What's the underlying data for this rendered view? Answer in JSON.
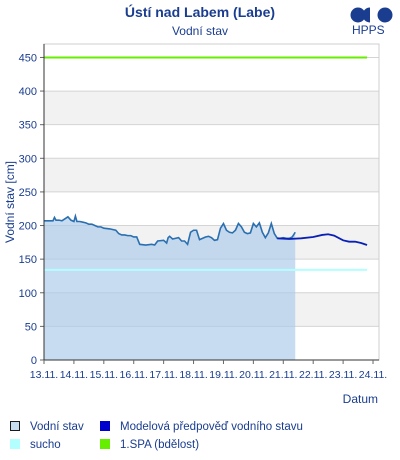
{
  "header": {
    "title": "Ústí nad Labem (Labe)",
    "subtitle": "Vodní stav",
    "logo_text": "HPPS"
  },
  "colors": {
    "observed_line": "#2a6fb0",
    "observed_fill": "#a9c9ea",
    "forecast": "#0a1fb5",
    "drought": "#b3ffff",
    "spa1": "#66ee00",
    "axis_text": "#1a3d8f",
    "band": "#f2f2f2"
  },
  "legend": [
    {
      "label": "Vodní stav",
      "color": "#c6dcf0",
      "border": "#1a1a1a"
    },
    {
      "label": "Modelová předpověď vodního stavu",
      "color": "#0000cc",
      "border": "#0000cc"
    },
    {
      "label": "sucho",
      "color": "#b3ffff",
      "border": "#b3ffff"
    },
    {
      "label": "1.SPA (bdělost)",
      "color": "#66ee00",
      "border": "#66ee00"
    }
  ],
  "chart_data": {
    "type": "line",
    "title": "Ústí nad Labem (Labe)",
    "subtitle": "Vodní stav",
    "xlabel": "Datum",
    "ylabel": "Vodní stav [cm]",
    "ylim": [
      0,
      470
    ],
    "yticks": [
      0,
      50,
      100,
      150,
      200,
      250,
      300,
      350,
      400,
      450
    ],
    "xlim": [
      0,
      11.2
    ],
    "xticks": [
      {
        "x": 0,
        "label": "13.11."
      },
      {
        "x": 1,
        "label": "14.11."
      },
      {
        "x": 2,
        "label": "15.11."
      },
      {
        "x": 3,
        "label": "16.11."
      },
      {
        "x": 4,
        "label": "17.11."
      },
      {
        "x": 5,
        "label": "18.11."
      },
      {
        "x": 6,
        "label": "19.11."
      },
      {
        "x": 7,
        "label": "20.11."
      },
      {
        "x": 8,
        "label": "21.11."
      },
      {
        "x": 9,
        "label": "22.11."
      },
      {
        "x": 10,
        "label": "23.11."
      },
      {
        "x": 11,
        "label": "24.11."
      }
    ],
    "series": [
      {
        "name": "Vodní stav",
        "x": [
          0,
          0.3,
          0.35,
          0.4,
          0.5,
          0.6,
          0.7,
          0.8,
          0.9,
          1.0,
          1.05,
          1.1,
          1.2,
          1.3,
          1.4,
          1.5,
          1.6,
          1.7,
          1.8,
          1.9,
          2.0,
          2.2,
          2.4,
          2.5,
          2.6,
          2.7,
          2.8,
          2.9,
          3.0,
          3.1,
          3.2,
          3.4,
          3.6,
          3.7,
          3.8,
          4.0,
          4.1,
          4.15,
          4.2,
          4.3,
          4.5,
          4.6,
          4.7,
          4.8,
          4.9,
          5.0,
          5.1,
          5.2,
          5.4,
          5.5,
          5.6,
          5.7,
          5.8,
          5.9,
          6.0,
          6.1,
          6.2,
          6.3,
          6.4,
          6.5,
          6.6,
          6.7,
          6.8,
          6.9,
          7.0,
          7.1,
          7.2,
          7.3,
          7.4,
          7.5,
          7.6,
          7.7,
          7.8,
          7.9,
          8.0,
          8.1,
          8.2,
          8.3,
          8.4
        ],
        "y": [
          207,
          207,
          212,
          208,
          208,
          207,
          210,
          213,
          208,
          206,
          214,
          206,
          206,
          205,
          204,
          202,
          202,
          200,
          198,
          198,
          196,
          195,
          193,
          188,
          186,
          186,
          185,
          185,
          183,
          183,
          172,
          171,
          172,
          171,
          177,
          178,
          174,
          182,
          184,
          180,
          182,
          177,
          177,
          172,
          190,
          193,
          193,
          179,
          183,
          184,
          182,
          178,
          179,
          196,
          203,
          193,
          190,
          189,
          193,
          203,
          198,
          190,
          188,
          189,
          203,
          198,
          204,
          190,
          182,
          189,
          203,
          188,
          181,
          181,
          182,
          181,
          181,
          183,
          190
        ]
      },
      {
        "name": "Modelová předpověď vodního stavu",
        "x": [
          7.8,
          8.2,
          8.6,
          9.0,
          9.3,
          9.5,
          9.7,
          10.0,
          10.2,
          10.4,
          10.6,
          10.8
        ],
        "y": [
          181,
          180,
          181,
          183,
          186,
          187,
          185,
          178,
          176,
          176,
          174,
          171
        ]
      },
      {
        "name": "sucho",
        "x": [
          0,
          10.8
        ],
        "y": [
          134,
          134
        ]
      },
      {
        "name": "1.SPA (bdělost)",
        "x": [
          0,
          10.8
        ],
        "y": [
          450,
          450
        ]
      }
    ]
  }
}
